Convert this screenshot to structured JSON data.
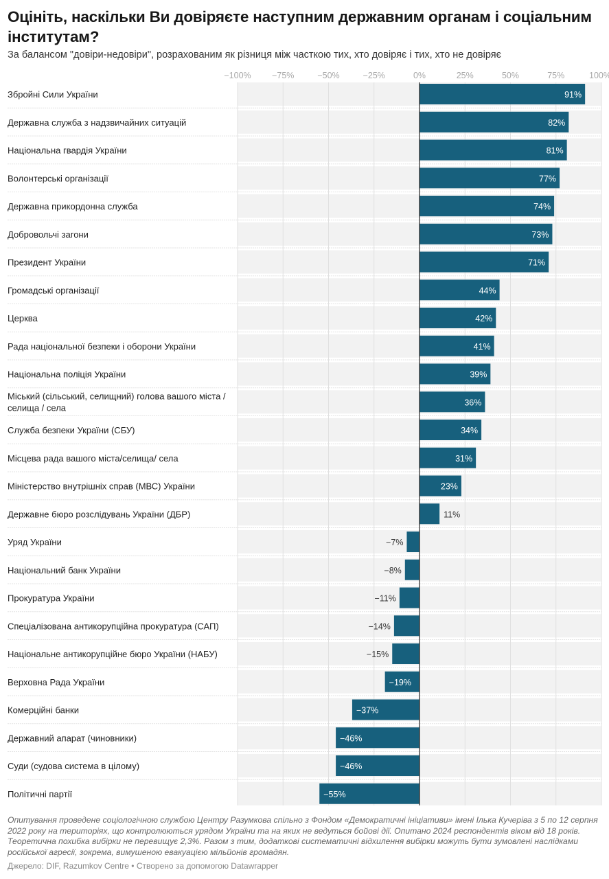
{
  "chart_data": {
    "type": "bar",
    "orientation": "horizontal",
    "title": "Оцініть, наскільки Ви довіряєте наступним державним органам і соціальним інститутам?",
    "subtitle": "За балансом \"довіри-недовіри\", розрахованим як різниця між часткою тих, хто довіряє і тих, хто не довіряє",
    "xlim": [
      -100,
      100
    ],
    "x_ticks": [
      -100,
      -75,
      -50,
      -25,
      0,
      25,
      50,
      75,
      100
    ],
    "x_tick_labels": [
      "−100%",
      "−75%",
      "−50%",
      "−25%",
      "0%",
      "25%",
      "50%",
      "75%",
      "100%"
    ],
    "grid": true,
    "bar_color": "#17607d",
    "categories": [
      "Збройні Сили України",
      "Державна служба з надзвичайних ситуацій",
      "Національна гвардія України",
      "Волонтерські організації",
      "Державна прикордонна служба",
      "Добровольчі загони",
      "Президент України",
      "Громадські організації",
      "Церква",
      "Рада національної безпеки і оборони України",
      "Національна поліція України",
      "Міський (сільський, селищний) голова вашого міста / селища / села",
      "Служба безпеки України (СБУ)",
      "Місцева рада вашого міста/селища/ села",
      "Міністерство внутрішніх справ (МВС) України",
      "Державне бюро розслідувань України (ДБР)",
      "Уряд України",
      "Національний банк України",
      "Прокуратура України",
      "Спеціалізована антикорупційна прокуратура (САП)",
      "Національне антикорупційне бюро України (НАБУ)",
      "Верховна Рада України",
      "Комерційні банки",
      "Державний апарат (чиновники)",
      "Суди (судова система в цілому)",
      "Політичні партії"
    ],
    "label_lines": [
      [
        "Збройні Сили України"
      ],
      [
        "Державна служба з надзвичайних ситуацій"
      ],
      [
        "Національна гвардія України"
      ],
      [
        "Волонтерські організації"
      ],
      [
        "Державна прикордонна служба"
      ],
      [
        "Добровольчі загони"
      ],
      [
        "Президент України"
      ],
      [
        "Громадські організації"
      ],
      [
        "Церква"
      ],
      [
        "Рада національної безпеки і оборони України"
      ],
      [
        "Національна поліція України"
      ],
      [
        "Міський (сільський, селищний) голова вашого міста /",
        "селища / села"
      ],
      [
        "Служба безпеки України (СБУ)"
      ],
      [
        "Місцева рада вашого міста/селища/ села"
      ],
      [
        "Міністерство внутрішніх справ (МВС) України"
      ],
      [
        "Державне бюро розслідувань України (ДБР)"
      ],
      [
        "Уряд України"
      ],
      [
        "Національний банк України"
      ],
      [
        "Прокуратура України"
      ],
      [
        "Спеціалізована антикорупційна прокуратура (САП)"
      ],
      [
        "Національне антикорупційне бюро України (НАБУ)"
      ],
      [
        "Верховна Рада України"
      ],
      [
        "Комерційні банки"
      ],
      [
        "Державний апарат (чиновники)"
      ],
      [
        "Суди (судова система в цілому)"
      ],
      [
        "Політичні партії"
      ]
    ],
    "values": [
      91,
      82,
      81,
      77,
      74,
      73,
      71,
      44,
      42,
      41,
      39,
      36,
      34,
      31,
      23,
      11,
      -7,
      -8,
      -11,
      -14,
      -15,
      -19,
      -37,
      -46,
      -46,
      -55
    ],
    "value_labels": [
      "91%",
      "82%",
      "81%",
      "77%",
      "74%",
      "73%",
      "71%",
      "44%",
      "42%",
      "41%",
      "39%",
      "36%",
      "34%",
      "31%",
      "23%",
      "11%",
      "−7%",
      "−8%",
      "−11%",
      "−14%",
      "−15%",
      "−19%",
      "−37%",
      "−46%",
      "−46%",
      "−55%"
    ],
    "xlabel": "",
    "ylabel": ""
  },
  "notes": "Опитування проведене соціологічною службою Центру Разумкова спільно з Фондом «Демократичні ініціативи» імені Ілька Кучеріва з 5 по 12 серпня 2022 року на територіях, що контролюються урядом України та на яких не ведуться бойові дії. Опитано 2024 респондентів віком від 18 років. Теоретична похибка вибірки не перевищує 2,3%. Разом з тим, додаткові систематичні відхилення вибірки можуть бути зумовлені наслідками російської агресії, зокрема, вимушеною евакуацією мільйонів громадян.",
  "source": "Джерело: DIF, Razumkov Centre • Створено за допомогою Datawrapper"
}
